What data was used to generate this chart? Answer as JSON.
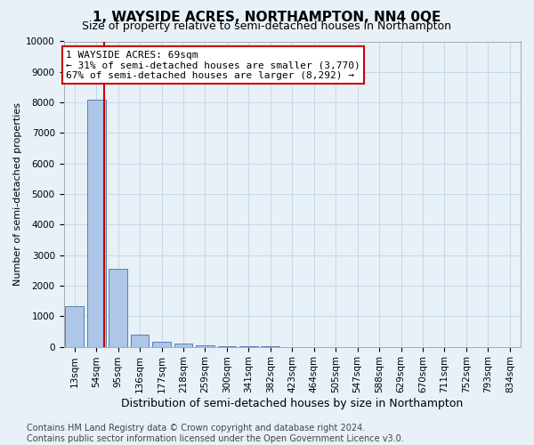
{
  "title": "1, WAYSIDE ACRES, NORTHAMPTON, NN4 0QE",
  "subtitle": "Size of property relative to semi-detached houses in Northampton",
  "xlabel": "Distribution of semi-detached houses by size in Northampton",
  "ylabel": "Number of semi-detached properties",
  "footer_line1": "Contains HM Land Registry data © Crown copyright and database right 2024.",
  "footer_line2": "Contains public sector information licensed under the Open Government Licence v3.0.",
  "bar_labels": [
    "13sqm",
    "54sqm",
    "95sqm",
    "136sqm",
    "177sqm",
    "218sqm",
    "259sqm",
    "300sqm",
    "341sqm",
    "382sqm",
    "423sqm",
    "464sqm",
    "505sqm",
    "547sqm",
    "588sqm",
    "629sqm",
    "670sqm",
    "711sqm",
    "752sqm",
    "793sqm",
    "834sqm"
  ],
  "bar_values": [
    1320,
    8100,
    2550,
    400,
    150,
    100,
    40,
    20,
    5,
    3,
    2,
    1,
    1,
    0,
    0,
    0,
    0,
    0,
    0,
    0,
    0
  ],
  "bar_color": "#aec6e8",
  "bar_edge_color": "#4472a8",
  "grid_color": "#c8d8e8",
  "background_color": "#e8f0f8",
  "property_line_color": "#cc0000",
  "annotation_line1": "1 WAYSIDE ACRES: 69sqm",
  "annotation_line2": "← 31% of semi-detached houses are smaller (3,770)",
  "annotation_line3": "67% of semi-detached houses are larger (8,292) →",
  "annotation_box_color": "#ffffff",
  "annotation_box_edge": "#cc0000",
  "ylim": [
    0,
    10000
  ],
  "yticks": [
    0,
    1000,
    2000,
    3000,
    4000,
    5000,
    6000,
    7000,
    8000,
    9000,
    10000
  ],
  "title_fontsize": 11,
  "subtitle_fontsize": 9,
  "xlabel_fontsize": 9,
  "ylabel_fontsize": 8,
  "tick_fontsize": 7.5,
  "annotation_fontsize": 8,
  "footer_fontsize": 7
}
